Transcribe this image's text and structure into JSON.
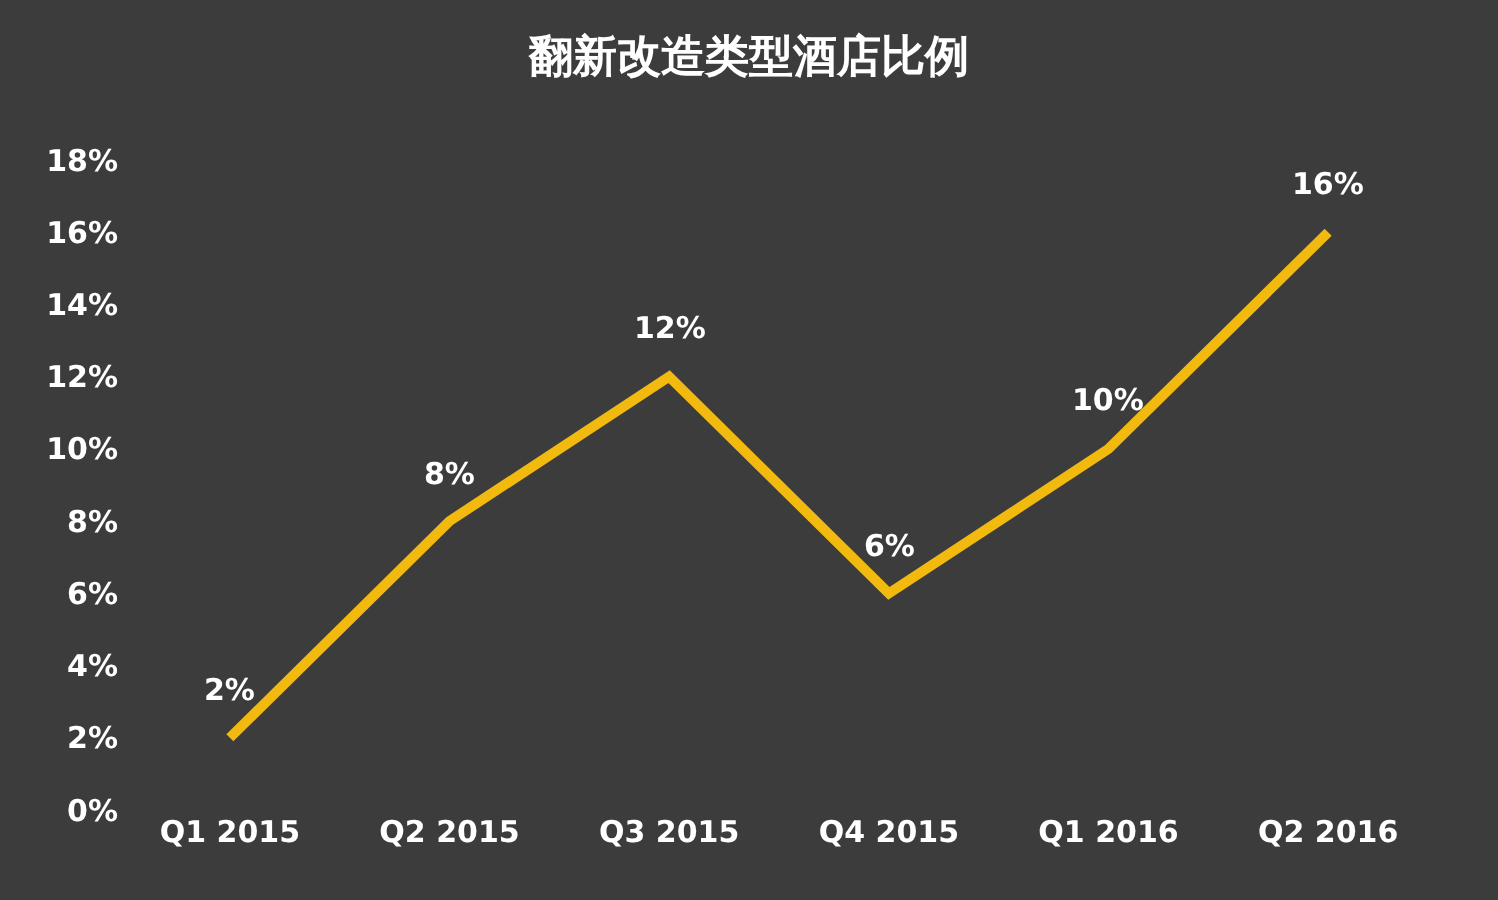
{
  "chart_data": {
    "type": "line",
    "title": "翻新改造类型酒店比例",
    "categories": [
      "Q1 2015",
      "Q2 2015",
      "Q3 2015",
      "Q4 2015",
      "Q1 2016",
      "Q2 2016"
    ],
    "series": [
      {
        "color": "#f2b90f",
        "values": [
          2,
          8,
          12,
          6,
          10,
          16
        ],
        "value_labels": [
          "2%",
          "8%",
          "12%",
          "6%",
          "10%",
          "16%"
        ]
      }
    ],
    "ylim": [
      0,
      18
    ],
    "yticks": [
      {
        "value": 0,
        "label": "0%"
      },
      {
        "value": 2,
        "label": "2%"
      },
      {
        "value": 4,
        "label": "4%"
      },
      {
        "value": 6,
        "label": "6%"
      },
      {
        "value": 8,
        "label": "8%"
      },
      {
        "value": 10,
        "label": "10%"
      },
      {
        "value": 12,
        "label": "12%"
      },
      {
        "value": 14,
        "label": "14%"
      },
      {
        "value": 16,
        "label": "16%"
      },
      {
        "value": 18,
        "label": "18%"
      }
    ],
    "grid": false,
    "marker": "none",
    "line_style": "solid"
  }
}
